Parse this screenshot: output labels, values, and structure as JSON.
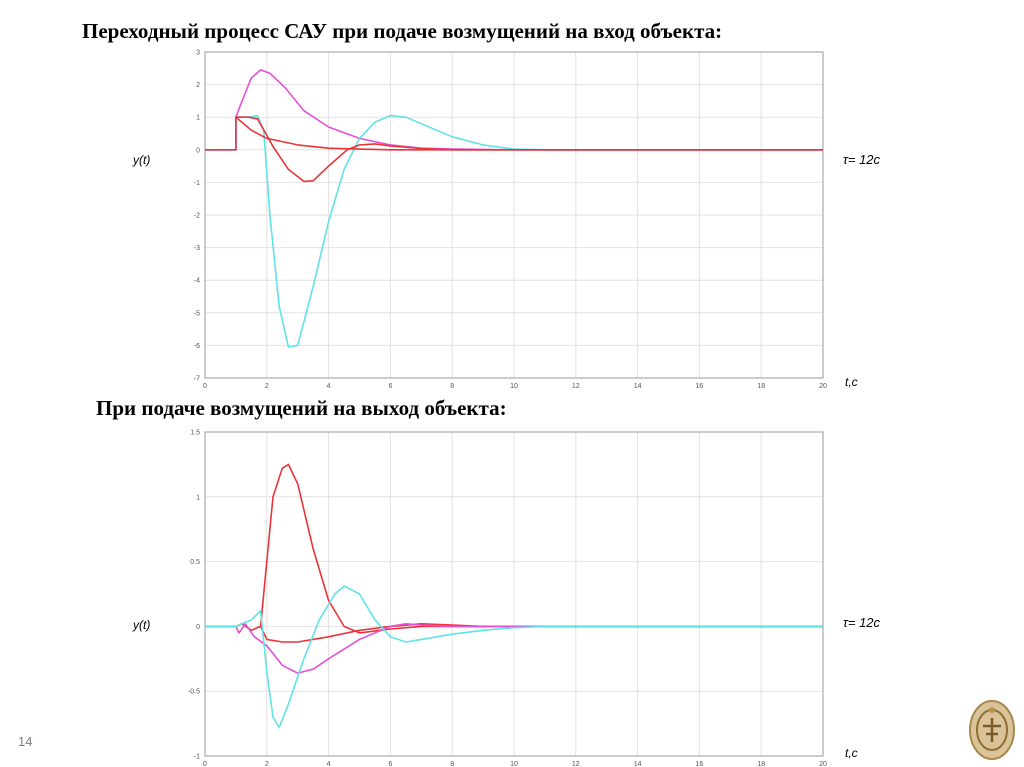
{
  "titles": {
    "top": "Переходный процесс САУ при подаче возмущений на вход объекта:",
    "bottom": "При подаче возмущений на выход объекта:"
  },
  "labels": {
    "y_top": "y(t)",
    "tau_top": "τ= 12c",
    "t_top": "t,c",
    "y_bottom": "y(t)",
    "tau_bottom": "τ= 12c",
    "t_bottom": "t,c"
  },
  "page_number": "14",
  "colors": {
    "red": "#e8343a",
    "magenta": "#e64fd6",
    "cyan": "#5fe3e6",
    "grid": "#e2e2e2",
    "axis": "#9a9a9a"
  },
  "chart_data": [
    {
      "type": "line",
      "title": "Переходный процесс САУ при подаче возмущений на вход объекта:",
      "xlabel": "t,c",
      "ylabel": "y(t)",
      "xlim": [
        0,
        20
      ],
      "ylim": [
        -7,
        3
      ],
      "xticks": [
        0,
        2,
        4,
        6,
        8,
        10,
        12,
        14,
        16,
        18,
        20
      ],
      "yticks": [
        3,
        2,
        1,
        0,
        -1,
        -2,
        -3,
        -4,
        -5,
        -6,
        -7
      ],
      "grid": true,
      "series": [
        {
          "color": "magenta",
          "points": [
            [
              0,
              0
            ],
            [
              1,
              0
            ],
            [
              1,
              1
            ],
            [
              1.2,
              1.5
            ],
            [
              1.5,
              2.2
            ],
            [
              1.8,
              2.45
            ],
            [
              2.1,
              2.35
            ],
            [
              2.6,
              1.9
            ],
            [
              3.2,
              1.2
            ],
            [
              4,
              0.7
            ],
            [
              5,
              0.35
            ],
            [
              6,
              0.15
            ],
            [
              7,
              0.05
            ],
            [
              8,
              0.02
            ],
            [
              10,
              0
            ],
            [
              20,
              0
            ]
          ]
        },
        {
          "color": "cyan",
          "points": [
            [
              0,
              0
            ],
            [
              1,
              0
            ],
            [
              1,
              1
            ],
            [
              1.4,
              1
            ],
            [
              1.7,
              1.05
            ],
            [
              1.9,
              0.6
            ],
            [
              2.1,
              -2
            ],
            [
              2.4,
              -4.8
            ],
            [
              2.7,
              -6.05
            ],
            [
              3,
              -6
            ],
            [
              3.5,
              -4.2
            ],
            [
              4,
              -2.2
            ],
            [
              4.5,
              -0.6
            ],
            [
              5,
              0.35
            ],
            [
              5.5,
              0.85
            ],
            [
              6,
              1.05
            ],
            [
              6.5,
              1
            ],
            [
              7,
              0.8
            ],
            [
              8,
              0.4
            ],
            [
              9,
              0.15
            ],
            [
              10,
              0.02
            ],
            [
              11,
              0
            ],
            [
              20,
              0
            ]
          ]
        },
        {
          "color": "red",
          "points": [
            [
              0,
              0
            ],
            [
              1,
              0
            ],
            [
              1,
              1
            ],
            [
              1.4,
              1
            ],
            [
              1.7,
              0.95
            ],
            [
              2.2,
              0.1
            ],
            [
              2.7,
              -0.6
            ],
            [
              3.2,
              -0.97
            ],
            [
              3.5,
              -0.95
            ],
            [
              4,
              -0.5
            ],
            [
              4.6,
              0
            ],
            [
              5,
              0.15
            ],
            [
              5.5,
              0.18
            ],
            [
              6,
              0.12
            ],
            [
              7,
              0.04
            ],
            [
              8,
              0
            ],
            [
              20,
              0
            ]
          ]
        },
        {
          "color": "red",
          "points": [
            [
              1,
              1
            ],
            [
              1.5,
              0.6
            ],
            [
              2,
              0.35
            ],
            [
              3,
              0.15
            ],
            [
              4,
              0.05
            ],
            [
              5,
              0.02
            ],
            [
              6,
              0
            ],
            [
              20,
              0
            ]
          ]
        }
      ]
    },
    {
      "type": "line",
      "title": "При подаче возмущений на выход объекта:",
      "xlabel": "t,c",
      "ylabel": "y(t)",
      "xlim": [
        0,
        20
      ],
      "ylim": [
        -1,
        1.5
      ],
      "xticks": [
        0,
        2,
        4,
        6,
        8,
        10,
        12,
        14,
        16,
        18,
        20
      ],
      "yticks": [
        1.5,
        1,
        0.5,
        0,
        -0.5,
        -1
      ],
      "grid": true,
      "series": [
        {
          "color": "red",
          "points": [
            [
              0,
              0
            ],
            [
              1,
              0
            ],
            [
              1.2,
              0.02
            ],
            [
              1.5,
              -0.03
            ],
            [
              1.8,
              0
            ],
            [
              2,
              0.5
            ],
            [
              2.2,
              1
            ],
            [
              2.5,
              1.22
            ],
            [
              2.7,
              1.25
            ],
            [
              3,
              1.1
            ],
            [
              3.5,
              0.6
            ],
            [
              4,
              0.2
            ],
            [
              4.5,
              0
            ],
            [
              5,
              -0.05
            ],
            [
              6,
              -0.02
            ],
            [
              7,
              0
            ],
            [
              20,
              0
            ]
          ]
        },
        {
          "color": "red",
          "points": [
            [
              1.8,
              0
            ],
            [
              2,
              -0.1
            ],
            [
              2.5,
              -0.12
            ],
            [
              3,
              -0.12
            ],
            [
              4,
              -0.08
            ],
            [
              5,
              -0.03
            ],
            [
              6,
              0
            ],
            [
              7,
              0.02
            ],
            [
              8,
              0.01
            ],
            [
              9,
              0
            ],
            [
              20,
              0
            ]
          ]
        },
        {
          "color": "magenta",
          "points": [
            [
              0,
              0
            ],
            [
              1,
              0
            ],
            [
              1.1,
              -0.05
            ],
            [
              1.3,
              0.02
            ],
            [
              1.6,
              -0.08
            ],
            [
              2,
              -0.15
            ],
            [
              2.5,
              -0.3
            ],
            [
              3,
              -0.36
            ],
            [
              3.5,
              -0.33
            ],
            [
              4,
              -0.25
            ],
            [
              5,
              -0.1
            ],
            [
              6,
              0
            ],
            [
              6.5,
              0.02
            ],
            [
              7,
              0.01
            ],
            [
              8,
              0
            ],
            [
              20,
              0
            ]
          ]
        },
        {
          "color": "cyan",
          "points": [
            [
              0,
              0
            ],
            [
              1,
              0
            ],
            [
              1.2,
              0.02
            ],
            [
              1.5,
              0.05
            ],
            [
              1.8,
              0.12
            ],
            [
              2,
              -0.35
            ],
            [
              2.2,
              -0.7
            ],
            [
              2.4,
              -0.78
            ],
            [
              2.7,
              -0.6
            ],
            [
              3.2,
              -0.25
            ],
            [
              3.7,
              0.05
            ],
            [
              4.2,
              0.25
            ],
            [
              4.5,
              0.31
            ],
            [
              5,
              0.25
            ],
            [
              5.5,
              0.05
            ],
            [
              6,
              -0.08
            ],
            [
              6.5,
              -0.12
            ],
            [
              7,
              -0.1
            ],
            [
              8,
              -0.06
            ],
            [
              9,
              -0.03
            ],
            [
              10,
              -0.01
            ],
            [
              11,
              0
            ],
            [
              20,
              0
            ]
          ]
        }
      ]
    }
  ]
}
